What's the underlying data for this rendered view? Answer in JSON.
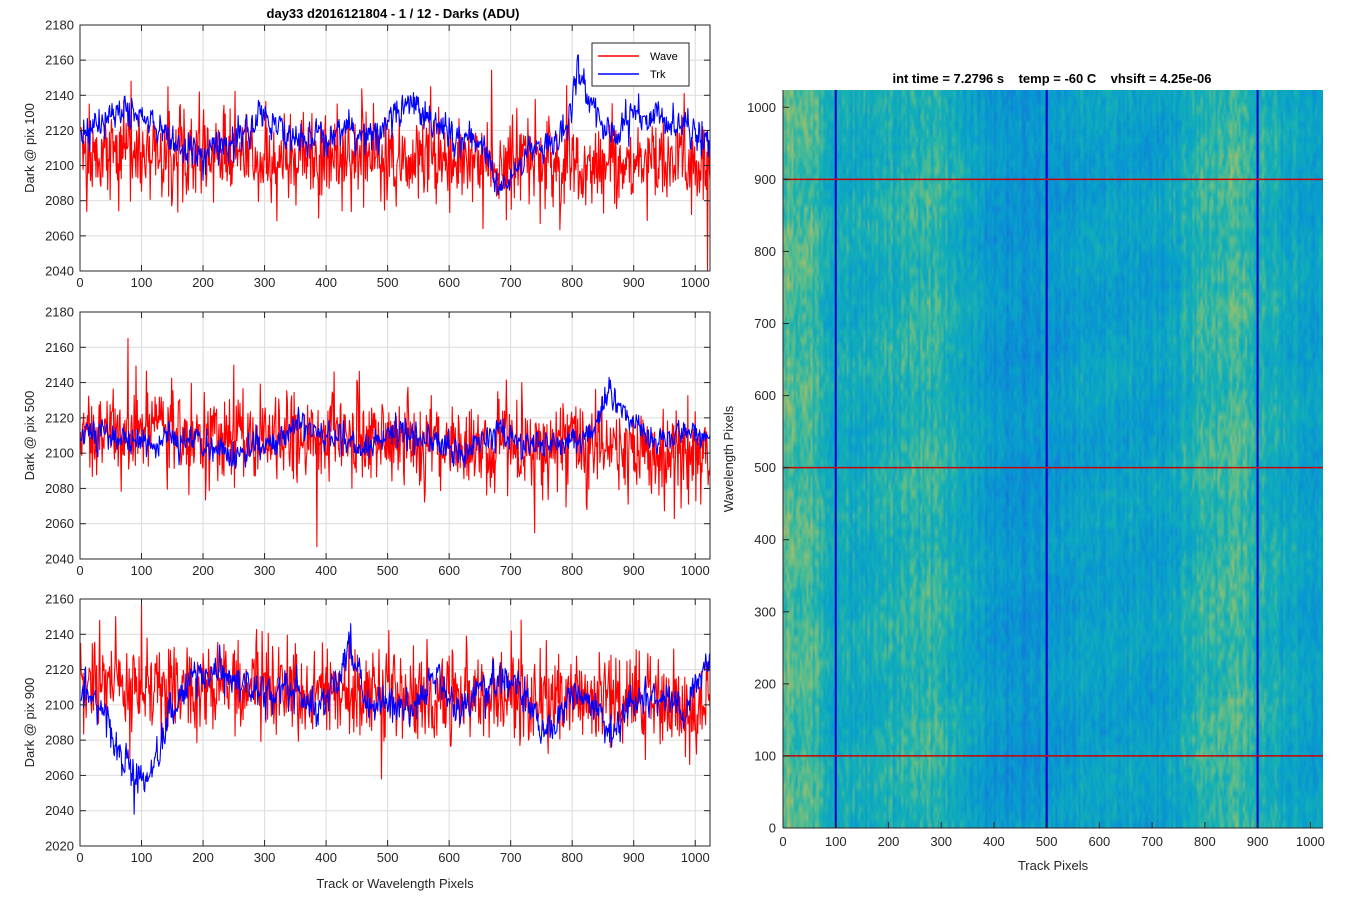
{
  "figure": {
    "title_left": "day33 d2016121804 - 1 / 12 - Darks (ADU)",
    "title_right": "int time = 7.2796 s    temp = -60 C    vhsift = 4.25e-06",
    "colors": {
      "wave": "#ff0000",
      "trk": "#0000ff",
      "grid": "#dcdcdc",
      "axis": "#262626"
    }
  },
  "chart_data": [
    {
      "type": "line",
      "id": "pix100",
      "ylabel": "Dark @ pix 100",
      "xlabel": "",
      "xlim": [
        0,
        1024
      ],
      "ylim": [
        2040,
        2180
      ],
      "xticks": [
        0,
        100,
        200,
        300,
        400,
        500,
        600,
        700,
        800,
        900,
        1000
      ],
      "yticks": [
        2040,
        2060,
        2080,
        2100,
        2120,
        2140,
        2160,
        2180
      ],
      "grid": true,
      "legend": {
        "position": "top-right",
        "entries": [
          "Wave",
          "Trk"
        ]
      },
      "series": [
        {
          "name": "Wave",
          "color": "#ff0000",
          "mean": 2108,
          "sd": 13,
          "smooth": 0,
          "anchors": [
            [
              0,
              2108
            ],
            [
              1024,
              2100
            ]
          ],
          "highlights": [
            [
              83,
              2148
            ],
            [
              1020,
              2040
            ]
          ]
        },
        {
          "name": "Trk",
          "color": "#0000ff",
          "mean": 2112,
          "sd": 4.5,
          "smooth": 0.35,
          "anchors": [
            [
              0,
              2118
            ],
            [
              30,
              2122
            ],
            [
              70,
              2132
            ],
            [
              100,
              2128
            ],
            [
              130,
              2122
            ],
            [
              160,
              2108
            ],
            [
              200,
              2106
            ],
            [
              240,
              2112
            ],
            [
              280,
              2122
            ],
            [
              300,
              2130
            ],
            [
              330,
              2118
            ],
            [
              360,
              2112
            ],
            [
              400,
              2118
            ],
            [
              430,
              2122
            ],
            [
              460,
              2115
            ],
            [
              500,
              2124
            ],
            [
              530,
              2140
            ],
            [
              560,
              2128
            ],
            [
              600,
              2120
            ],
            [
              640,
              2115
            ],
            [
              660,
              2108
            ],
            [
              680,
              2085
            ],
            [
              700,
              2092
            ],
            [
              730,
              2108
            ],
            [
              760,
              2112
            ],
            [
              790,
              2120
            ],
            [
              810,
              2152
            ],
            [
              840,
              2128
            ],
            [
              870,
              2118
            ],
            [
              900,
              2130
            ],
            [
              940,
              2128
            ],
            [
              980,
              2122
            ],
            [
              1024,
              2115
            ]
          ],
          "highlights": [
            [
              810,
              2163
            ]
          ]
        }
      ]
    },
    {
      "type": "line",
      "id": "pix500",
      "ylabel": "Dark @ pix 500",
      "xlabel": "",
      "xlim": [
        0,
        1024
      ],
      "ylim": [
        2040,
        2180
      ],
      "xticks": [
        0,
        100,
        200,
        300,
        400,
        500,
        600,
        700,
        800,
        900,
        1000
      ],
      "yticks": [
        2040,
        2060,
        2080,
        2100,
        2120,
        2140,
        2160,
        2180
      ],
      "grid": true,
      "legend": null,
      "series": [
        {
          "name": "Wave",
          "color": "#ff0000",
          "mean": 2103,
          "sd": 13,
          "smooth": 0,
          "anchors": [
            [
              0,
              2108
            ],
            [
              100,
              2112
            ],
            [
              1024,
              2100
            ]
          ],
          "highlights": [
            [
              78,
              2165
            ],
            [
              385,
              2047
            ]
          ]
        },
        {
          "name": "Trk",
          "color": "#0000ff",
          "mean": 2108,
          "sd": 4,
          "smooth": 0.35,
          "anchors": [
            [
              0,
              2108
            ],
            [
              60,
              2114
            ],
            [
              120,
              2104
            ],
            [
              180,
              2108
            ],
            [
              240,
              2098
            ],
            [
              300,
              2104
            ],
            [
              360,
              2116
            ],
            [
              420,
              2108
            ],
            [
              460,
              2102
            ],
            [
              500,
              2112
            ],
            [
              560,
              2108
            ],
            [
              620,
              2100
            ],
            [
              680,
              2112
            ],
            [
              720,
              2106
            ],
            [
              780,
              2104
            ],
            [
              830,
              2110
            ],
            [
              860,
              2135
            ],
            [
              900,
              2118
            ],
            [
              940,
              2106
            ],
            [
              970,
              2114
            ],
            [
              1024,
              2112
            ]
          ],
          "highlights": [
            [
              860,
              2143
            ]
          ]
        }
      ]
    },
    {
      "type": "line",
      "id": "pix900",
      "ylabel": "Dark @ pix 900",
      "xlabel": "Track or Wavelength Pixels",
      "xlim": [
        0,
        1024
      ],
      "ylim": [
        2020,
        2160
      ],
      "xticks": [
        0,
        100,
        200,
        300,
        400,
        500,
        600,
        700,
        800,
        900,
        1000
      ],
      "yticks": [
        2020,
        2040,
        2060,
        2080,
        2100,
        2120,
        2140,
        2160
      ],
      "grid": true,
      "legend": null,
      "series": [
        {
          "name": "Wave",
          "color": "#ff0000",
          "mean": 2108,
          "sd": 13,
          "smooth": 0,
          "anchors": [
            [
              0,
              2112
            ],
            [
              1024,
              2102
            ]
          ],
          "highlights": [
            [
              58,
              2150
            ],
            [
              490,
              2058
            ]
          ]
        },
        {
          "name": "Trk",
          "color": "#0000ff",
          "mean": 2105,
          "sd": 5,
          "smooth": 0.35,
          "anchors": [
            [
              0,
              2108
            ],
            [
              30,
              2102
            ],
            [
              55,
              2080
            ],
            [
              80,
              2065
            ],
            [
              100,
              2058
            ],
            [
              120,
              2062
            ],
            [
              150,
              2095
            ],
            [
              180,
              2118
            ],
            [
              230,
              2118
            ],
            [
              280,
              2108
            ],
            [
              330,
              2108
            ],
            [
              380,
              2100
            ],
            [
              420,
              2112
            ],
            [
              440,
              2128
            ],
            [
              470,
              2100
            ],
            [
              510,
              2100
            ],
            [
              540,
              2098
            ],
            [
              580,
              2115
            ],
            [
              620,
              2098
            ],
            [
              660,
              2112
            ],
            [
              700,
              2118
            ],
            [
              730,
              2100
            ],
            [
              760,
              2082
            ],
            [
              800,
              2108
            ],
            [
              830,
              2102
            ],
            [
              860,
              2082
            ],
            [
              900,
              2100
            ],
            [
              940,
              2105
            ],
            [
              980,
              2095
            ],
            [
              1024,
              2132
            ]
          ],
          "highlights": [
            [
              88,
              2038
            ],
            [
              440,
              2146
            ]
          ]
        }
      ]
    },
    {
      "type": "heatmap",
      "id": "dark-frame",
      "title": "int time = 7.2796 s    temp = -60 C    vhsift = 4.25e-06",
      "xlabel": "Track Pixels",
      "ylabel": "Wavelength Pixels",
      "xlim": [
        0,
        1024
      ],
      "ylim": [
        0,
        1024
      ],
      "xticks": [
        0,
        100,
        200,
        300,
        400,
        500,
        600,
        700,
        800,
        900,
        1000
      ],
      "yticks": [
        0,
        100,
        200,
        300,
        400,
        500,
        600,
        700,
        800,
        900,
        1000
      ],
      "colormap": "parula",
      "vertical_markers": {
        "color": "#0000cc",
        "x": [
          100,
          500,
          900
        ]
      },
      "horizontal_markers": {
        "color": "#cc0000",
        "y": [
          100,
          500,
          900
        ]
      }
    }
  ]
}
